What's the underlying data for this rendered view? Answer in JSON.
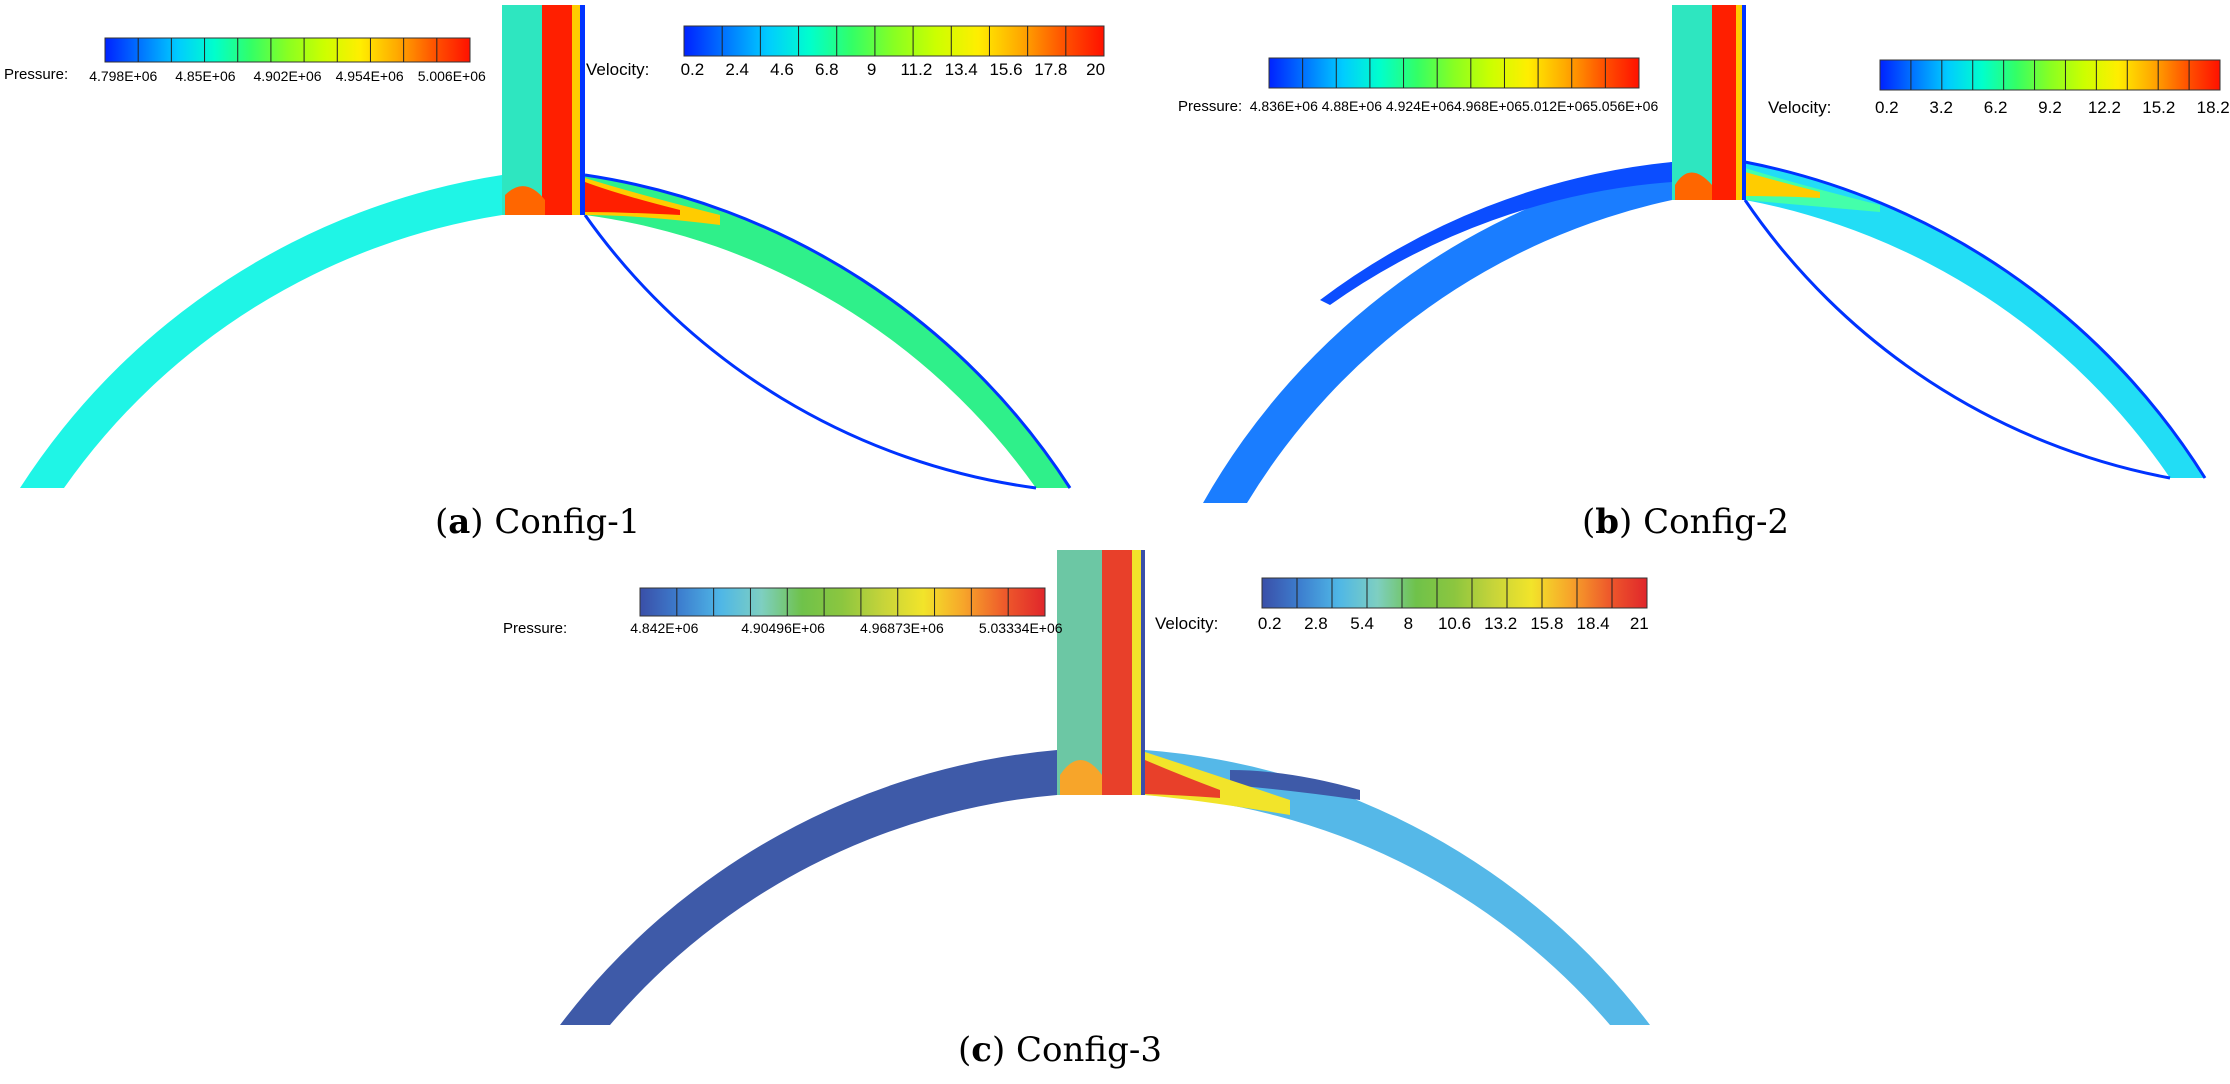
{
  "panels": [
    {
      "caption": {
        "open": "(",
        "letter": "a",
        "close": ")",
        "text": " Config-1"
      },
      "pressure_bar": {
        "title": "Pressure:",
        "ticks": [
          "4.798E+06",
          "4.85E+06",
          "4.902E+06",
          "4.954E+06",
          "5.006E+06"
        ],
        "colors": [
          "#0022ff",
          "#0077ff",
          "#00ccff",
          "#00ffcc",
          "#33ff66",
          "#88ff22",
          "#ccff00",
          "#ffee00",
          "#ffaa00",
          "#ff5500",
          "#ff1100"
        ]
      },
      "velocity_bar": {
        "title": "Velocity:",
        "ticks": [
          "0.2",
          "2.4",
          "4.6",
          "6.8",
          "9",
          "11.2",
          "13.4",
          "15.6",
          "17.8",
          "20"
        ],
        "colors": [
          "#0022ff",
          "#0077ff",
          "#00ccff",
          "#00ffcc",
          "#33ff66",
          "#88ff22",
          "#ccff00",
          "#ffee00",
          "#ffaa00",
          "#ff5500",
          "#ff1100"
        ]
      },
      "fluid_colors": {
        "left": "#1ff5e6",
        "right": "#2ff08a",
        "jet": "#ff1f00",
        "jet_edge": "#ffcc00",
        "inlet": "#2ee6c0",
        "wall": "#0033ff"
      }
    },
    {
      "caption": {
        "open": "(",
        "letter": "b",
        "close": ")",
        "text": " Config-2"
      },
      "pressure_bar": {
        "title": "Pressure:",
        "ticks": [
          "4.836E+06",
          "4.88E+06",
          "4.924E+06",
          "4.968E+06",
          "5.012E+06",
          "5.056E+06"
        ],
        "colors": [
          "#0022ff",
          "#0077ff",
          "#00ccff",
          "#00ffcc",
          "#33ff66",
          "#88ff22",
          "#ccff00",
          "#ffee00",
          "#ffaa00",
          "#ff5500",
          "#ff1100"
        ]
      },
      "velocity_bar": {
        "title": "Velocity:",
        "ticks": [
          "0.2",
          "3.2",
          "6.2",
          "9.2",
          "12.2",
          "15.2",
          "18.2"
        ],
        "colors": [
          "#0022ff",
          "#0077ff",
          "#00ccff",
          "#00ffcc",
          "#33ff66",
          "#88ff22",
          "#ccff00",
          "#ffee00",
          "#ffaa00",
          "#ff5500",
          "#ff1100"
        ]
      },
      "fluid_colors": {
        "left": "#1a7dff",
        "right": "#22ddf5",
        "jet": "#ff1f00",
        "jet_edge": "#ffcc00",
        "inlet": "#2ee6c0",
        "wall": "#0033ff"
      }
    },
    {
      "caption": {
        "open": "(",
        "letter": "c",
        "close": ")",
        "text": " Config-3"
      },
      "pressure_bar": {
        "title": "Pressure:",
        "ticks": [
          "4.842E+06",
          "4.90496E+06",
          "4.96873E+06",
          "5.03334E+06"
        ],
        "colors": [
          "#3a4fa8",
          "#3d7fcf",
          "#4fb7e6",
          "#7ecfc1",
          "#6fc24a",
          "#8cc63f",
          "#c6d43a",
          "#f2e42a",
          "#f7a52a",
          "#ee5a2b",
          "#e0262b"
        ]
      },
      "velocity_bar": {
        "title": "Velocity:",
        "ticks": [
          "0.2",
          "2.8",
          "5.4",
          "8",
          "10.6",
          "13.2",
          "15.8",
          "18.4",
          "21"
        ],
        "colors": [
          "#3a4fa8",
          "#3d7fcf",
          "#4fb7e6",
          "#7ecfc1",
          "#6fc24a",
          "#8cc63f",
          "#c6d43a",
          "#f2e42a",
          "#f7a52a",
          "#ee5a2b",
          "#e0262b"
        ]
      },
      "fluid_colors": {
        "left": "#3e5aa8",
        "right": "#55b8e8",
        "jet": "#e8402a",
        "jet_edge": "#f2e42a",
        "inlet": "#6cc7a4",
        "wall": "#3a4fa8"
      }
    }
  ]
}
